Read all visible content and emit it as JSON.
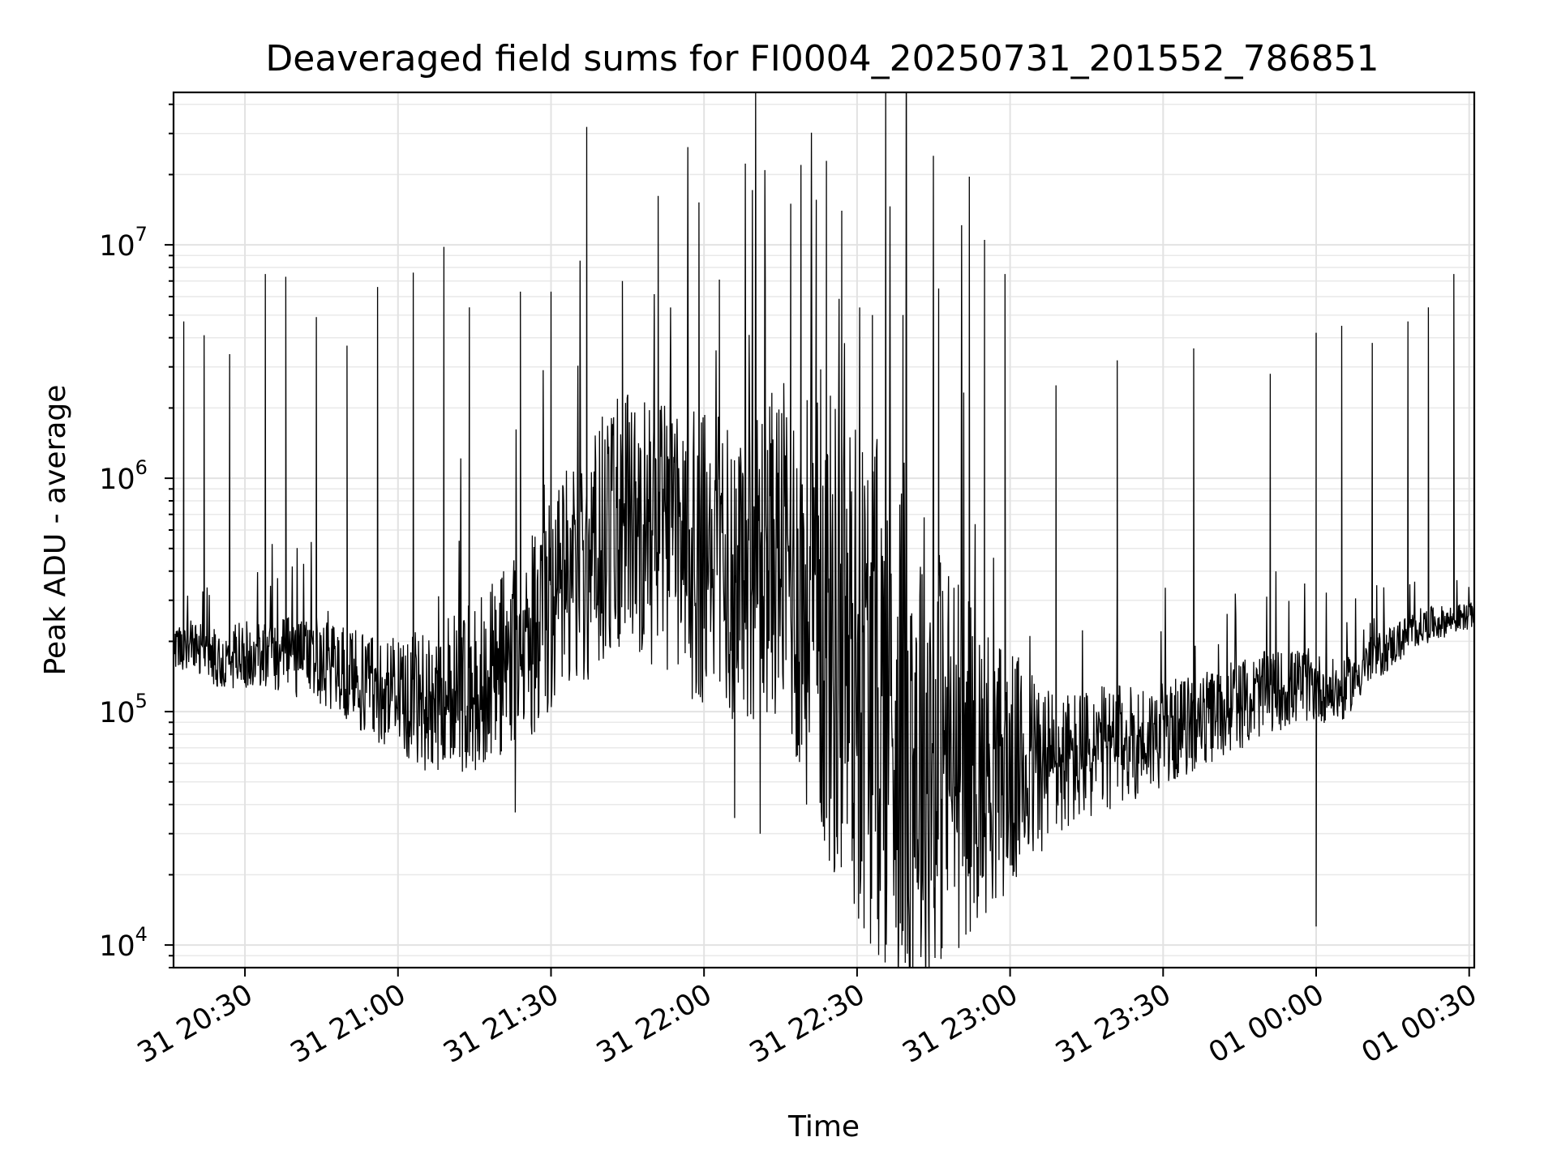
{
  "chart_data": {
    "type": "line",
    "title": "Deaveraged field sums for FI0004_20250731_201552_786851",
    "xlabel": "Time",
    "ylabel": "Peak ADU - average",
    "yscale": "log",
    "ylim": [
      8000,
      45000000
    ],
    "xlim": [
      "2025-07-31 20:16",
      "2025-08-01 00:31"
    ],
    "grid": true,
    "x_ticks": [
      {
        "t": "2025-07-31 20:30",
        "label": "31 20:30"
      },
      {
        "t": "2025-07-31 21:00",
        "label": "31 21:00"
      },
      {
        "t": "2025-07-31 21:30",
        "label": "31 21:30"
      },
      {
        "t": "2025-07-31 22:00",
        "label": "31 22:00"
      },
      {
        "t": "2025-07-31 22:30",
        "label": "31 22:30"
      },
      {
        "t": "2025-07-31 23:00",
        "label": "31 23:00"
      },
      {
        "t": "2025-07-31 23:30",
        "label": "31 23:30"
      },
      {
        "t": "2025-08-01 00:00",
        "label": "01 00:00"
      },
      {
        "t": "2025-08-01 00:30",
        "label": "01 00:30"
      }
    ],
    "y_ticks": [
      {
        "value": 10000,
        "base": "10",
        "exp": "4"
      },
      {
        "value": 100000,
        "base": "10",
        "exp": "5"
      },
      {
        "value": 1000000,
        "base": "10",
        "exp": "6"
      },
      {
        "value": 10000000,
        "base": "10",
        "exp": "7"
      }
    ],
    "series": [
      {
        "color": "#000000",
        "baseline": [
          [
            "2025-07-31 20:16",
            200000
          ],
          [
            "2025-07-31 20:25",
            170000
          ],
          [
            "2025-07-31 20:35",
            180000
          ],
          [
            "2025-07-31 20:45",
            160000
          ],
          [
            "2025-07-31 20:55",
            130000
          ],
          [
            "2025-07-31 21:05",
            110000
          ],
          [
            "2025-07-31 21:15",
            130000
          ],
          [
            "2025-07-31 21:25",
            200000
          ],
          [
            "2025-07-31 21:35",
            400000
          ],
          [
            "2025-07-31 21:45",
            700000
          ],
          [
            "2025-07-31 21:55",
            500000
          ],
          [
            "2025-07-31 22:05",
            400000
          ],
          [
            "2025-07-31 22:15",
            500000
          ],
          [
            "2025-07-31 22:20",
            300000
          ],
          [
            "2025-07-31 22:30",
            150000
          ],
          [
            "2025-07-31 22:40",
            80000
          ],
          [
            "2025-07-31 22:50",
            60000
          ],
          [
            "2025-07-31 23:00",
            55000
          ],
          [
            "2025-07-31 23:10",
            60000
          ],
          [
            "2025-07-31 23:20",
            70000
          ],
          [
            "2025-07-31 23:30",
            80000
          ],
          [
            "2025-07-31 23:40",
            95000
          ],
          [
            "2025-07-31 23:50",
            120000
          ],
          [
            "2025-07-31 23:58",
            130000
          ],
          [
            "2025-08-01 00:05",
            120000
          ],
          [
            "2025-08-01 00:10",
            160000
          ],
          [
            "2025-08-01 00:20",
            230000
          ],
          [
            "2025-08-01 00:31",
            260000
          ]
        ],
        "variability": [
          [
            "2025-07-31 20:16",
            0.12
          ],
          [
            "2025-07-31 20:50",
            0.22
          ],
          [
            "2025-07-31 21:20",
            0.45
          ],
          [
            "2025-07-31 21:40",
            0.6
          ],
          [
            "2025-07-31 22:00",
            0.7
          ],
          [
            "2025-07-31 22:15",
            0.8
          ],
          [
            "2025-07-31 22:25",
            1.2
          ],
          [
            "2025-07-31 22:40",
            1.3
          ],
          [
            "2025-07-31 22:55",
            0.7
          ],
          [
            "2025-07-31 23:10",
            0.35
          ],
          [
            "2025-07-31 23:30",
            0.25
          ],
          [
            "2025-07-31 23:58",
            0.18
          ],
          [
            "2025-08-01 00:10",
            0.12
          ],
          [
            "2025-08-01 00:31",
            0.06
          ]
        ],
        "peaks": [
          [
            "2025-07-31 20:18",
            4700000
          ],
          [
            "2025-07-31 20:22",
            4100000
          ],
          [
            "2025-07-31 20:27",
            3400000
          ],
          [
            "2025-07-31 20:34",
            7500000
          ],
          [
            "2025-07-31 20:38",
            7300000
          ],
          [
            "2025-07-31 20:44",
            4900000
          ],
          [
            "2025-07-31 20:50",
            3700000
          ],
          [
            "2025-07-31 20:56",
            6600000
          ],
          [
            "2025-07-31 21:03",
            7600000
          ],
          [
            "2025-07-31 21:09",
            9800000
          ],
          [
            "2025-07-31 21:14",
            5400000
          ],
          [
            "2025-07-31 21:24",
            6300000
          ],
          [
            "2025-07-31 21:30",
            6300000
          ],
          [
            "2025-07-31 21:37",
            32000000
          ],
          [
            "2025-07-31 21:44",
            7000000
          ],
          [
            "2025-07-31 21:51",
            16200000
          ],
          [
            "2025-07-31 21:59",
            15200000
          ],
          [
            "2025-07-31 22:03",
            7100000
          ],
          [
            "2025-07-31 22:12",
            7000000
          ],
          [
            "2025-07-31 22:17",
            15000000
          ],
          [
            "2025-07-31 22:19",
            22000000
          ],
          [
            "2025-07-31 22:22",
            15600000
          ],
          [
            "2025-07-31 22:24",
            22900000
          ],
          [
            "2025-07-31 22:27",
            14000000
          ],
          [
            "2025-07-31 22:33",
            5000000
          ],
          [
            "2025-07-31 22:39",
            5000000
          ],
          [
            "2025-07-31 22:46",
            6500000
          ],
          [
            "2025-07-31 22:52",
            19600000
          ],
          [
            "2025-07-31 22:55",
            10500000
          ],
          [
            "2025-07-31 22:59",
            7500000
          ],
          [
            "2025-07-31 23:09",
            2500000
          ],
          [
            "2025-07-31 23:21",
            3200000
          ],
          [
            "2025-07-31 23:36",
            3600000
          ],
          [
            "2025-07-31 23:51",
            2800000
          ],
          [
            "2025-08-01 00:00",
            4200000
          ],
          [
            "2025-08-01 00:05",
            4500000
          ],
          [
            "2025-08-01 00:11",
            3800000
          ],
          [
            "2025-08-01 00:18",
            4700000
          ],
          [
            "2025-08-01 00:22",
            5400000
          ],
          [
            "2025-08-01 00:27",
            7500000
          ]
        ],
        "dips": [
          [
            "2025-07-31 21:23",
            37000
          ],
          [
            "2025-07-31 22:06",
            35000
          ],
          [
            "2025-07-31 22:11",
            30000
          ],
          [
            "2025-07-31 22:26",
            29000
          ],
          [
            "2025-07-31 22:55",
            29000
          ],
          [
            "2025-08-01 00:00",
            12000
          ]
        ]
      }
    ]
  }
}
